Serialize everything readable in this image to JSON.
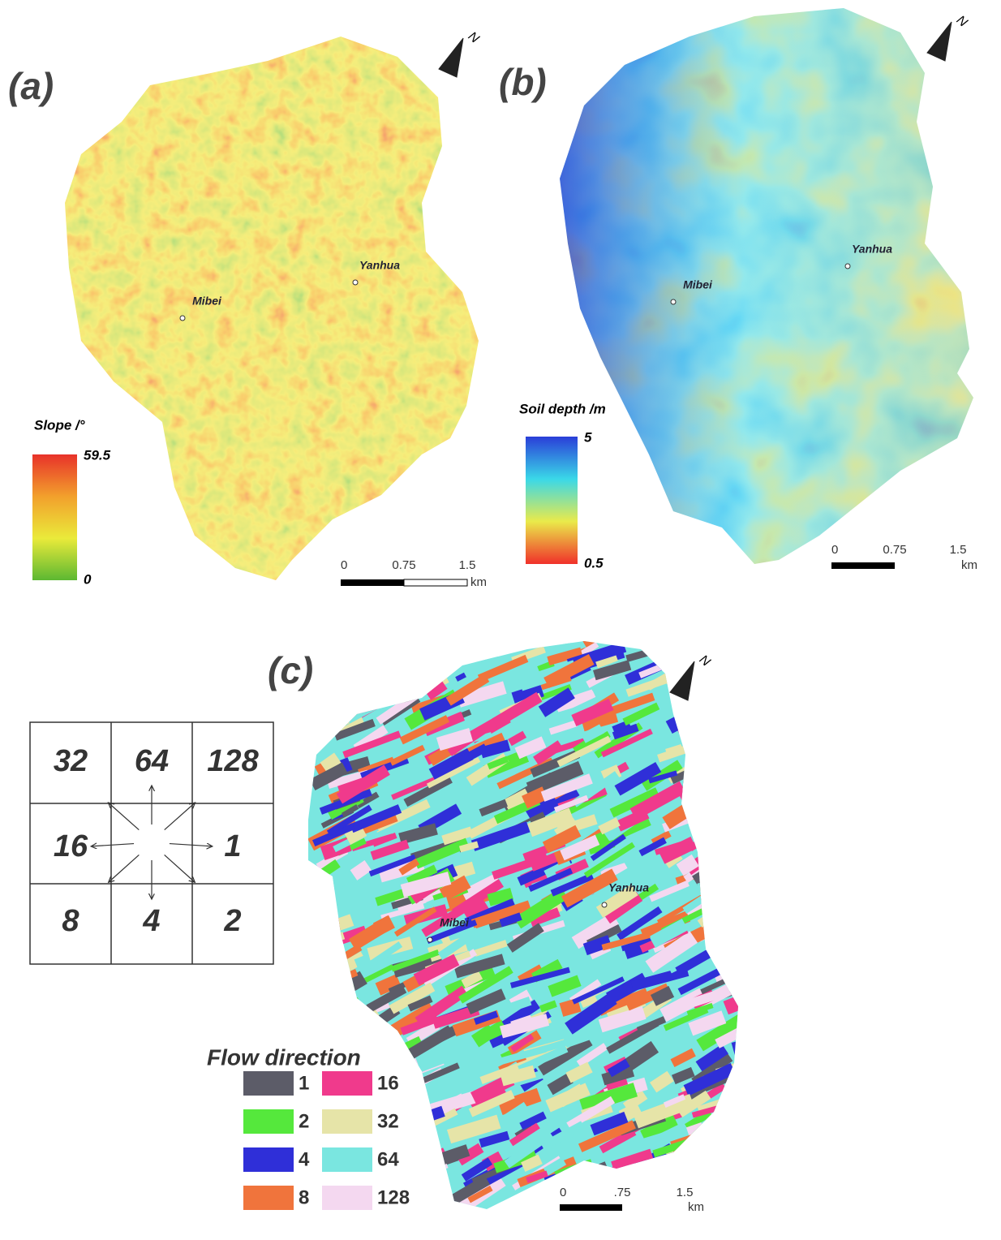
{
  "panels": [
    {
      "label": "(a)",
      "north": "N",
      "places": [
        "Mibei",
        "Yanhua"
      ],
      "legend": {
        "title": "Slope /°",
        "max": "59.5",
        "min": "0",
        "colors": [
          "#e8322a",
          "#f2a02c",
          "#eaea3a",
          "#5cb832"
        ]
      },
      "scale": {
        "ticks": [
          "0",
          "0.75",
          "1.5"
        ],
        "unit": "km"
      }
    },
    {
      "label": "(b)",
      "north": "N",
      "places": [
        "Mibei",
        "Yanhua"
      ],
      "legend": {
        "title": "Soil depth /m",
        "max": "5",
        "min": "0.5",
        "colors": [
          "#2a3ed8",
          "#3ad8e8",
          "#eaea4a",
          "#f0302a"
        ]
      },
      "scale": {
        "ticks": [
          "0",
          "0.75",
          "1.5"
        ],
        "unit": "km"
      }
    },
    {
      "label": "(c)",
      "north": "N",
      "places": [
        "Mibei",
        "Yanhua"
      ],
      "scale": {
        "ticks": [
          "0",
          ".75",
          "1.5"
        ],
        "unit": "km"
      }
    }
  ],
  "flow_grid": [
    "32",
    "64",
    "128",
    "16",
    "1",
    "8",
    "4",
    "2"
  ],
  "flow_legend": {
    "title": "Flow direction",
    "items": [
      {
        "label": "1",
        "color": "#5c5c68"
      },
      {
        "label": "2",
        "color": "#55e83c"
      },
      {
        "label": "4",
        "color": "#2f2fd8"
      },
      {
        "label": "8",
        "color": "#f0743c"
      },
      {
        "label": "16",
        "color": "#f03a8c"
      },
      {
        "label": "32",
        "color": "#e6e4a8"
      },
      {
        "label": "64",
        "color": "#7ae6e0"
      },
      {
        "label": "128",
        "color": "#f4d8f0"
      }
    ]
  }
}
